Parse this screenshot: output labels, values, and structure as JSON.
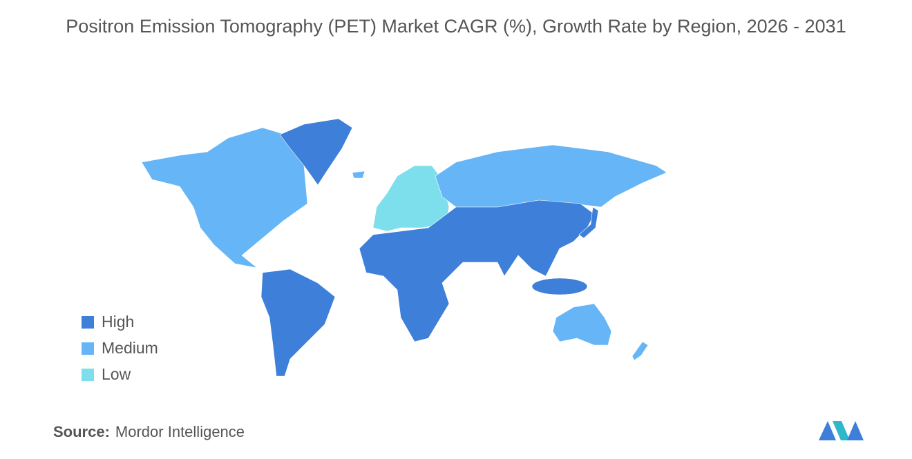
{
  "title": "Positron Emission Tomography (PET) Market CAGR (%), Growth Rate by Region, 2026 - 2031",
  "legend": [
    {
      "label": "High",
      "color": "#3d7fd9"
    },
    {
      "label": "Medium",
      "color": "#66b5f6"
    },
    {
      "label": "Low",
      "color": "#7ddfec"
    }
  ],
  "source": {
    "label": "Source:",
    "text": "Mordor Intelligence"
  }
}
